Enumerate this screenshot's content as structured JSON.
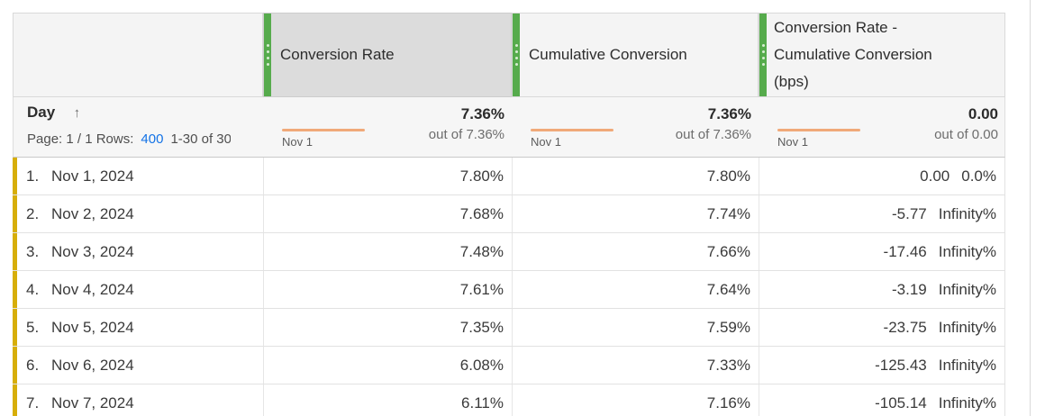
{
  "table": {
    "columns": [
      {
        "label": "Conversion Rate",
        "selected": true,
        "summary_value": "7.36%",
        "summary_out_of": "out of 7.36%",
        "spark_label": "Nov 1"
      },
      {
        "label": "Cumulative Conversion",
        "selected": false,
        "summary_value": "7.36%",
        "summary_out_of": "out of 7.36%",
        "spark_label": "Nov 1"
      },
      {
        "label": "Conversion Rate - Cumulative Conversion (bps)",
        "label_lines": [
          "Conversion Rate -",
          "Cumulative Conversion",
          "(bps)"
        ],
        "selected": false,
        "summary_value": "0.00",
        "summary_out_of": "out of 0.00",
        "spark_label": "Nov 1"
      }
    ],
    "dimension": {
      "label": "Day",
      "sort_icon": "↑",
      "pagination": {
        "prefix": "Page: 1 / 1 Rows:",
        "rows_link": "400",
        "range": "1-30 of 30"
      }
    },
    "rows": [
      {
        "index": "1.",
        "date": "Nov 1, 2024",
        "conversion_rate": "7.80%",
        "cumulative_conversion": "7.80%",
        "diff": "0.00",
        "diff_pct": "0.0%"
      },
      {
        "index": "2.",
        "date": "Nov 2, 2024",
        "conversion_rate": "7.68%",
        "cumulative_conversion": "7.74%",
        "diff": "-5.77",
        "diff_pct": "Infinity%"
      },
      {
        "index": "3.",
        "date": "Nov 3, 2024",
        "conversion_rate": "7.48%",
        "cumulative_conversion": "7.66%",
        "diff": "-17.46",
        "diff_pct": "Infinity%"
      },
      {
        "index": "4.",
        "date": "Nov 4, 2024",
        "conversion_rate": "7.61%",
        "cumulative_conversion": "7.64%",
        "diff": "-3.19",
        "diff_pct": "Infinity%"
      },
      {
        "index": "5.",
        "date": "Nov 5, 2024",
        "conversion_rate": "7.35%",
        "cumulative_conversion": "7.59%",
        "diff": "-23.75",
        "diff_pct": "Infinity%"
      },
      {
        "index": "6.",
        "date": "Nov 6, 2024",
        "conversion_rate": "6.08%",
        "cumulative_conversion": "7.33%",
        "diff": "-125.43",
        "diff_pct": "Infinity%"
      },
      {
        "index": "7.",
        "date": "Nov 7, 2024",
        "conversion_rate": "6.11%",
        "cumulative_conversion": "7.16%",
        "diff": "-105.14",
        "diff_pct": "Infinity%"
      }
    ]
  },
  "colors": {
    "accent_green": "#56ab4c",
    "row_accent_yellow": "#d7ae09",
    "spark_orange": "#f0a979",
    "link_blue": "#1473e6",
    "selected_header_bg": "#dcdcdc"
  }
}
